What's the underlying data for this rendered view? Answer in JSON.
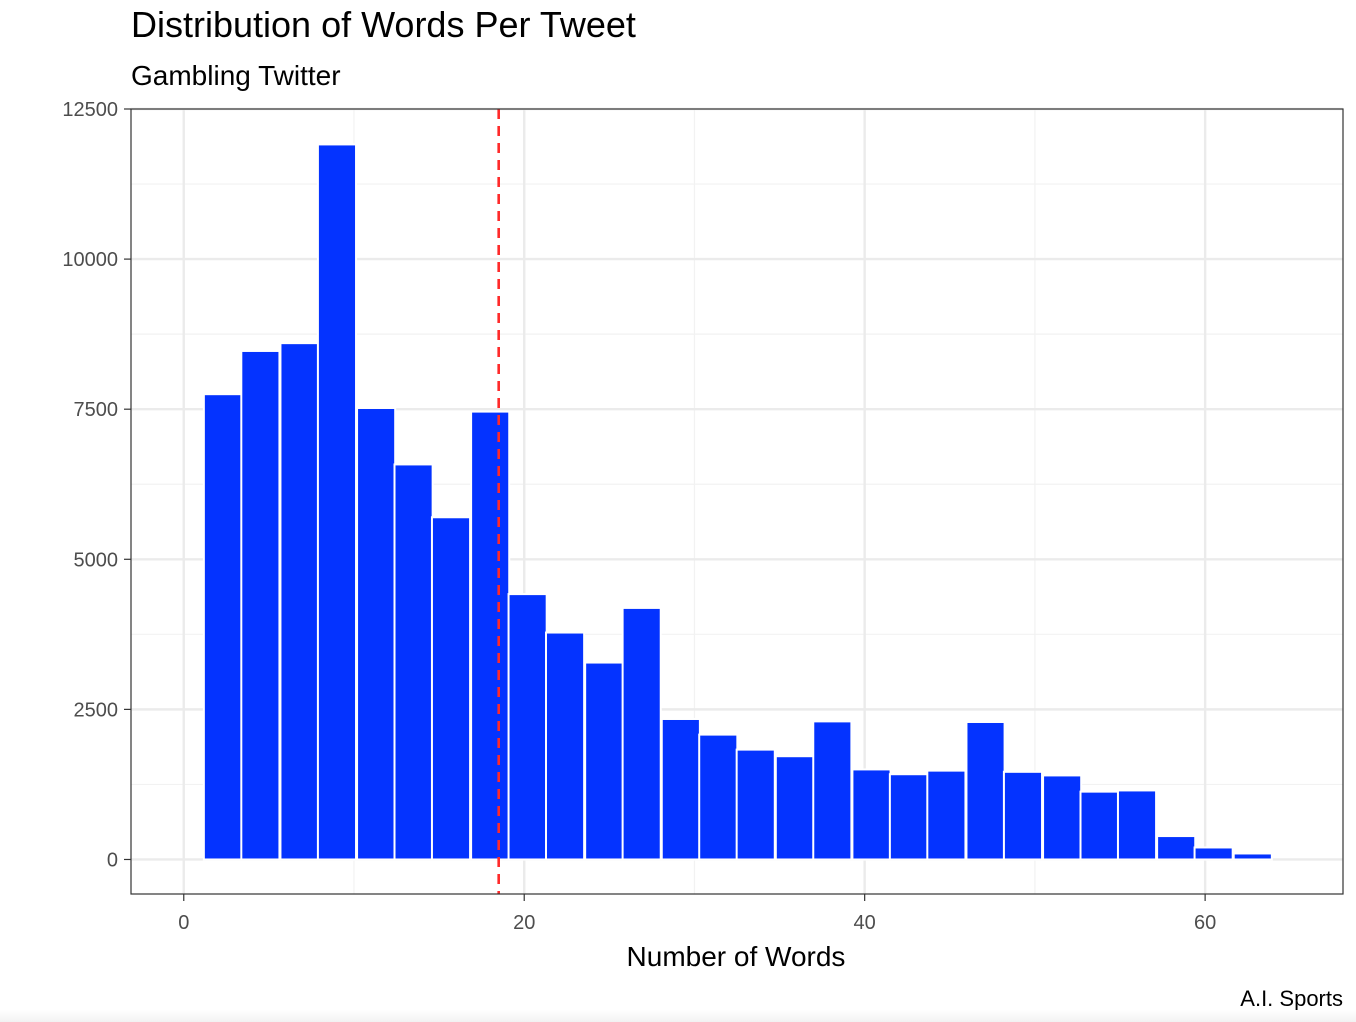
{
  "chart_data": {
    "type": "bar",
    "title": "Distribution of Words Per Tweet",
    "subtitle": "Gambling Twitter",
    "xlabel": "Number of Words",
    "ylabel": "",
    "caption": "A.I. Sports",
    "xlim": [
      -3.1,
      68.1
    ],
    "ylim": [
      -575,
      12500
    ],
    "x_ticks": [
      0,
      20,
      40,
      60
    ],
    "y_ticks": [
      0,
      2500,
      5000,
      7500,
      10000,
      12500
    ],
    "bin_width": 2.24,
    "bar_color": "#0433FF",
    "mean_line": {
      "x": 18.5,
      "color": "#FF2A2A",
      "style": "dashed"
    },
    "grid": true,
    "bars": [
      {
        "x": 2.3,
        "value": 7750
      },
      {
        "x": 4.5,
        "value": 8470
      },
      {
        "x": 6.8,
        "value": 8600
      },
      {
        "x": 9.0,
        "value": 11910
      },
      {
        "x": 11.3,
        "value": 7520
      },
      {
        "x": 13.5,
        "value": 6580
      },
      {
        "x": 15.7,
        "value": 5700
      },
      {
        "x": 18.0,
        "value": 7460
      },
      {
        "x": 20.2,
        "value": 4420
      },
      {
        "x": 22.4,
        "value": 3780
      },
      {
        "x": 24.7,
        "value": 3280
      },
      {
        "x": 26.9,
        "value": 4190
      },
      {
        "x": 29.2,
        "value": 2340
      },
      {
        "x": 31.4,
        "value": 2080
      },
      {
        "x": 33.6,
        "value": 1830
      },
      {
        "x": 35.9,
        "value": 1720
      },
      {
        "x": 38.1,
        "value": 2300
      },
      {
        "x": 40.4,
        "value": 1500
      },
      {
        "x": 42.6,
        "value": 1420
      },
      {
        "x": 44.8,
        "value": 1480
      },
      {
        "x": 47.1,
        "value": 2290
      },
      {
        "x": 49.3,
        "value": 1460
      },
      {
        "x": 51.6,
        "value": 1400
      },
      {
        "x": 53.8,
        "value": 1130
      },
      {
        "x": 56.0,
        "value": 1150
      },
      {
        "x": 58.3,
        "value": 390
      },
      {
        "x": 60.5,
        "value": 200
      },
      {
        "x": 62.8,
        "value": 100
      }
    ]
  }
}
